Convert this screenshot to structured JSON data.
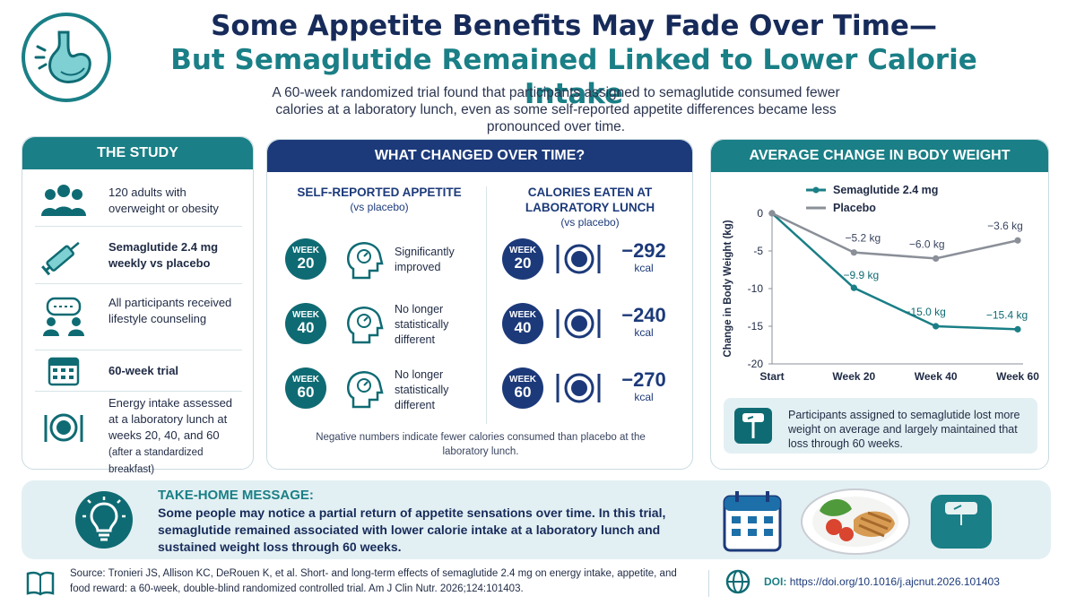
{
  "header": {
    "title_line1": "Some Appetite Benefits May Fade Over Time—",
    "title_line2": "But Semaglutide Remained Linked to Lower Calorie Intake",
    "subtitle": "A 60-week randomized trial found that participants assigned to semaglutide consumed fewer calories at a laboratory lunch, even as some self-reported appetite differences became less pronounced over time.",
    "logo_icon": "stomach-icon"
  },
  "study": {
    "title": "THE STUDY",
    "items": [
      {
        "icon": "people-icon",
        "text": "120 adults with overweight or obesity"
      },
      {
        "icon": "syringe-icon",
        "text": "Semaglutide 2.4 mg weekly vs placebo"
      },
      {
        "icon": "counseling-icon",
        "text": "All participants received lifestyle counseling"
      },
      {
        "icon": "calendar-icon",
        "text": "60-week trial"
      },
      {
        "icon": "plate-icon",
        "text": "Energy intake assessed at a laboratory lunch at weeks 20, 40, and 60",
        "note": "(after a standardized breakfast)"
      }
    ]
  },
  "changed": {
    "title": "WHAT CHANGED OVER TIME?",
    "appetite_head": "SELF-REPORTED APPETITE",
    "appetite_sub": "(vs placebo)",
    "calories_head": "CALORIES EATEN AT LABORATORY LUNCH",
    "calories_sub": "(vs placebo)",
    "week_word": "WEEK",
    "rows": [
      {
        "week": "20",
        "appetite": "Significantly improved",
        "kcal": "−292",
        "unit": "kcal"
      },
      {
        "week": "40",
        "appetite": "No longer statistically different",
        "kcal": "−240",
        "unit": "kcal"
      },
      {
        "week": "60",
        "appetite": "No longer statistically different",
        "kcal": "−270",
        "unit": "kcal"
      }
    ],
    "note": "Negative numbers indicate fewer calories consumed than placebo at the laboratory lunch."
  },
  "weight": {
    "title": "AVERAGE CHANGE IN BODY WEIGHT",
    "callout": "Participants assigned to semaglutide lost more weight on average and largely maintained that loss through 60 weeks.",
    "callout_icon": "scale-icon"
  },
  "chart_data": {
    "type": "line",
    "categories": [
      "Start",
      "Week 20",
      "Week 40",
      "Week 60"
    ],
    "ylabel": "Change in Body Weight (kg)",
    "ylim": [
      -20,
      0
    ],
    "yticks": [
      0,
      -5,
      -10,
      -15,
      -20
    ],
    "legend_position": "top",
    "series": [
      {
        "name": "Semaglutide 2.4 mg",
        "color": "#1a7f86",
        "values": [
          0,
          -9.9,
          -15.0,
          -15.4
        ],
        "labels": [
          "",
          "−9.9 kg",
          "−15.0 kg",
          "−15.4 kg"
        ]
      },
      {
        "name": "Placebo",
        "color": "#8a8f98",
        "values": [
          0,
          -5.2,
          -6.0,
          -3.6
        ],
        "labels": [
          "",
          "−5.2 kg",
          "−6.0 kg",
          "−3.6 kg"
        ]
      }
    ]
  },
  "takehome": {
    "title": "TAKE-HOME MESSAGE:",
    "body": "Some people may notice a partial return of appetite sensations over time. In this trial, semaglutide remained associated with lower calorie intake at a laboratory lunch and sustained weight loss through 60 weeks.",
    "icon": "lightbulb-icon"
  },
  "footer": {
    "source": "Source: Tronieri JS, Allison KC, DeRouen K, et al. Short- and long-term effects of semaglutide 2.4 mg on energy intake, appetite, and food reward: a 60-week, double-blind randomized controlled trial. Am J Clin Nutr. 2026;124:101403.",
    "doi_label": "DOI:",
    "doi": "https://doi.org/10.1016/j.ajcnut.2026.101403"
  }
}
